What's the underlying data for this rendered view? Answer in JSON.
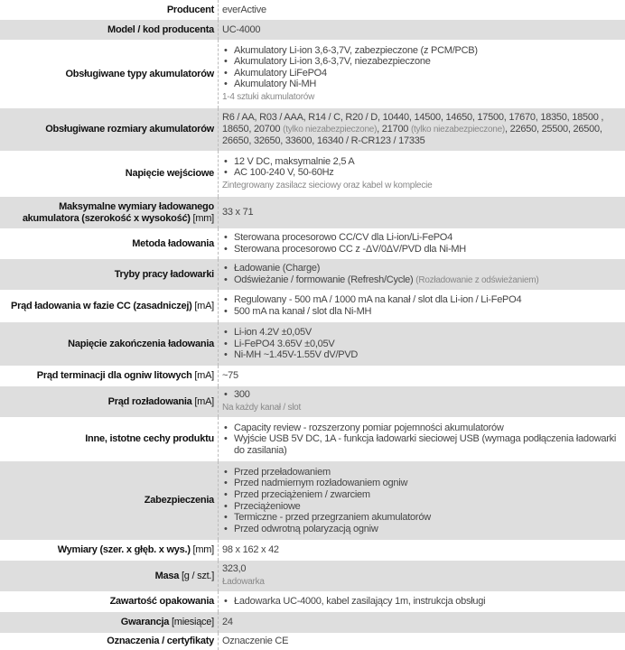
{
  "rows": [
    {
      "label": "Producent",
      "unit": "",
      "text": [
        {
          "t": "everActive"
        }
      ]
    },
    {
      "label": "Model / kod producenta",
      "unit": "",
      "text": [
        {
          "t": "UC-4000"
        }
      ]
    },
    {
      "label": "Obsługiwane typy akumulatorów",
      "unit": "",
      "bullets": [
        [
          {
            "t": "Akumulatory Li-ion 3,6-3,7V, zabezpieczone (z PCM/PCB)"
          }
        ],
        [
          {
            "t": "Akumulatory Li-ion 3,6-3,7V, niezabezpieczone"
          }
        ],
        [
          {
            "t": "Akumulatory LiFePO4"
          }
        ],
        [
          {
            "t": "Akumulatory Ni-MH"
          }
        ]
      ],
      "note": "1-4 sztuki akumulatorów"
    },
    {
      "label": "Obsługiwane rozmiary akumulatorów",
      "unit": "",
      "text": [
        {
          "t": "R6 / AA, R03 / AAA, R14 / C, R20 / D, 10440, 14500, 14650, 17500, 17670, 18350, 18500 , 18650, 20700 "
        },
        {
          "n": "(tylko niezabezpieczone)"
        },
        {
          "t": ", 21700 "
        },
        {
          "n": "(tylko niezabezpieczone)"
        },
        {
          "t": ", 22650, 25500, 26500, 26650, 32650, 33600, 16340 / R-CR123 / 17335"
        }
      ]
    },
    {
      "label": "Napięcie wejściowe",
      "unit": "",
      "bullets": [
        [
          {
            "t": "12 V DC, maksymalnie 2,5 A"
          }
        ],
        [
          {
            "t": "AC 100-240 V, 50-60Hz"
          }
        ]
      ],
      "note": "Zintegrowany zasilacz sieciowy oraz kabel w komplecie"
    },
    {
      "label": "Maksymalne wymiary ładowanego akumulatora (szerokość x wysokość)",
      "unit": "[mm]",
      "text": [
        {
          "t": "33 x 71"
        }
      ]
    },
    {
      "label": "Metoda ładowania",
      "unit": "",
      "bullets": [
        [
          {
            "t": "Sterowana procesorowo CC/CV dla Li-ion/Li-FePO4"
          }
        ],
        [
          {
            "t": "Sterowana procesorowo CC z -ΔV/0ΔV/PVD dla Ni-MH"
          }
        ]
      ]
    },
    {
      "label": "Tryby pracy ładowarki",
      "unit": "",
      "bullets": [
        [
          {
            "t": "Ładowanie (Charge)"
          }
        ],
        [
          {
            "t": "Odświeżanie / formowanie (Refresh/Cycle) "
          },
          {
            "n": "(Rozładowanie z odświeżaniem)"
          }
        ]
      ]
    },
    {
      "label": "Prąd ładowania w fazie CC (zasadniczej)",
      "unit": "[mA]",
      "bullets": [
        [
          {
            "t": "Regulowany - 500 mA / 1000 mA na kanał / slot dla Li-ion / Li-FePO4"
          }
        ],
        [
          {
            "t": "500 mA na kanał / slot dla Ni-MH"
          }
        ]
      ]
    },
    {
      "label": "Napięcie zakończenia ładowania",
      "unit": "",
      "bullets": [
        [
          {
            "t": "Li-ion 4.2V ±0,05V"
          }
        ],
        [
          {
            "t": "Li-FePO4 3.65V ±0,05V"
          }
        ],
        [
          {
            "t": "Ni-MH ~1.45V-1.55V dV/PVD"
          }
        ]
      ]
    },
    {
      "label": "Prąd terminacji dla ogniw litowych",
      "unit": "[mA]",
      "text": [
        {
          "t": "~75"
        }
      ]
    },
    {
      "label": "Prąd rozładowania",
      "unit": "[mA]",
      "bullets": [
        [
          {
            "t": "300"
          }
        ]
      ],
      "note": "Na każdy kanał / slot"
    },
    {
      "label": "Inne, istotne cechy produktu",
      "unit": "",
      "bullets": [
        [
          {
            "t": "Capacity review - rozszerzony pomiar pojemności akumulatorów"
          }
        ],
        [
          {
            "t": "Wyjście USB 5V DC, 1A - funkcja ładowarki sieciowej USB (wymaga podłączenia ładowarki do zasilania)"
          }
        ]
      ]
    },
    {
      "label": "Zabezpieczenia",
      "unit": "",
      "bullets": [
        [
          {
            "t": "Przed przeładowaniem"
          }
        ],
        [
          {
            "t": "Przed nadmiernym rozładowaniem ogniw"
          }
        ],
        [
          {
            "t": "Przed przeciążeniem / zwarciem"
          }
        ],
        [
          {
            "t": "Przeciążeniowe"
          }
        ],
        [
          {
            "t": "Termiczne - przed przegrzaniem akumulatorów"
          }
        ],
        [
          {
            "t": "Przed odwrotną polaryzacją ogniw"
          }
        ]
      ]
    },
    {
      "label": "Wymiary (szer. x głęb. x wys.)",
      "unit": "[mm]",
      "text": [
        {
          "t": "98 x 162 x 42"
        }
      ]
    },
    {
      "label": "Masa",
      "unit": "[g / szt.]",
      "text": [
        {
          "t": "323,0"
        }
      ],
      "note": "Ładowarka"
    },
    {
      "label": "Zawartość opakowania",
      "unit": "",
      "bullets": [
        [
          {
            "t": "Ładowarka UC-4000, kabel zasilający 1m, instrukcja obsługi"
          }
        ]
      ]
    },
    {
      "label": "Gwarancja",
      "unit": "[miesiące]",
      "text": [
        {
          "t": "24"
        }
      ]
    },
    {
      "label": "Oznaczenia / certyfikaty",
      "unit": "",
      "text": [
        {
          "t": "Oznaczenie CE"
        }
      ]
    }
  ]
}
